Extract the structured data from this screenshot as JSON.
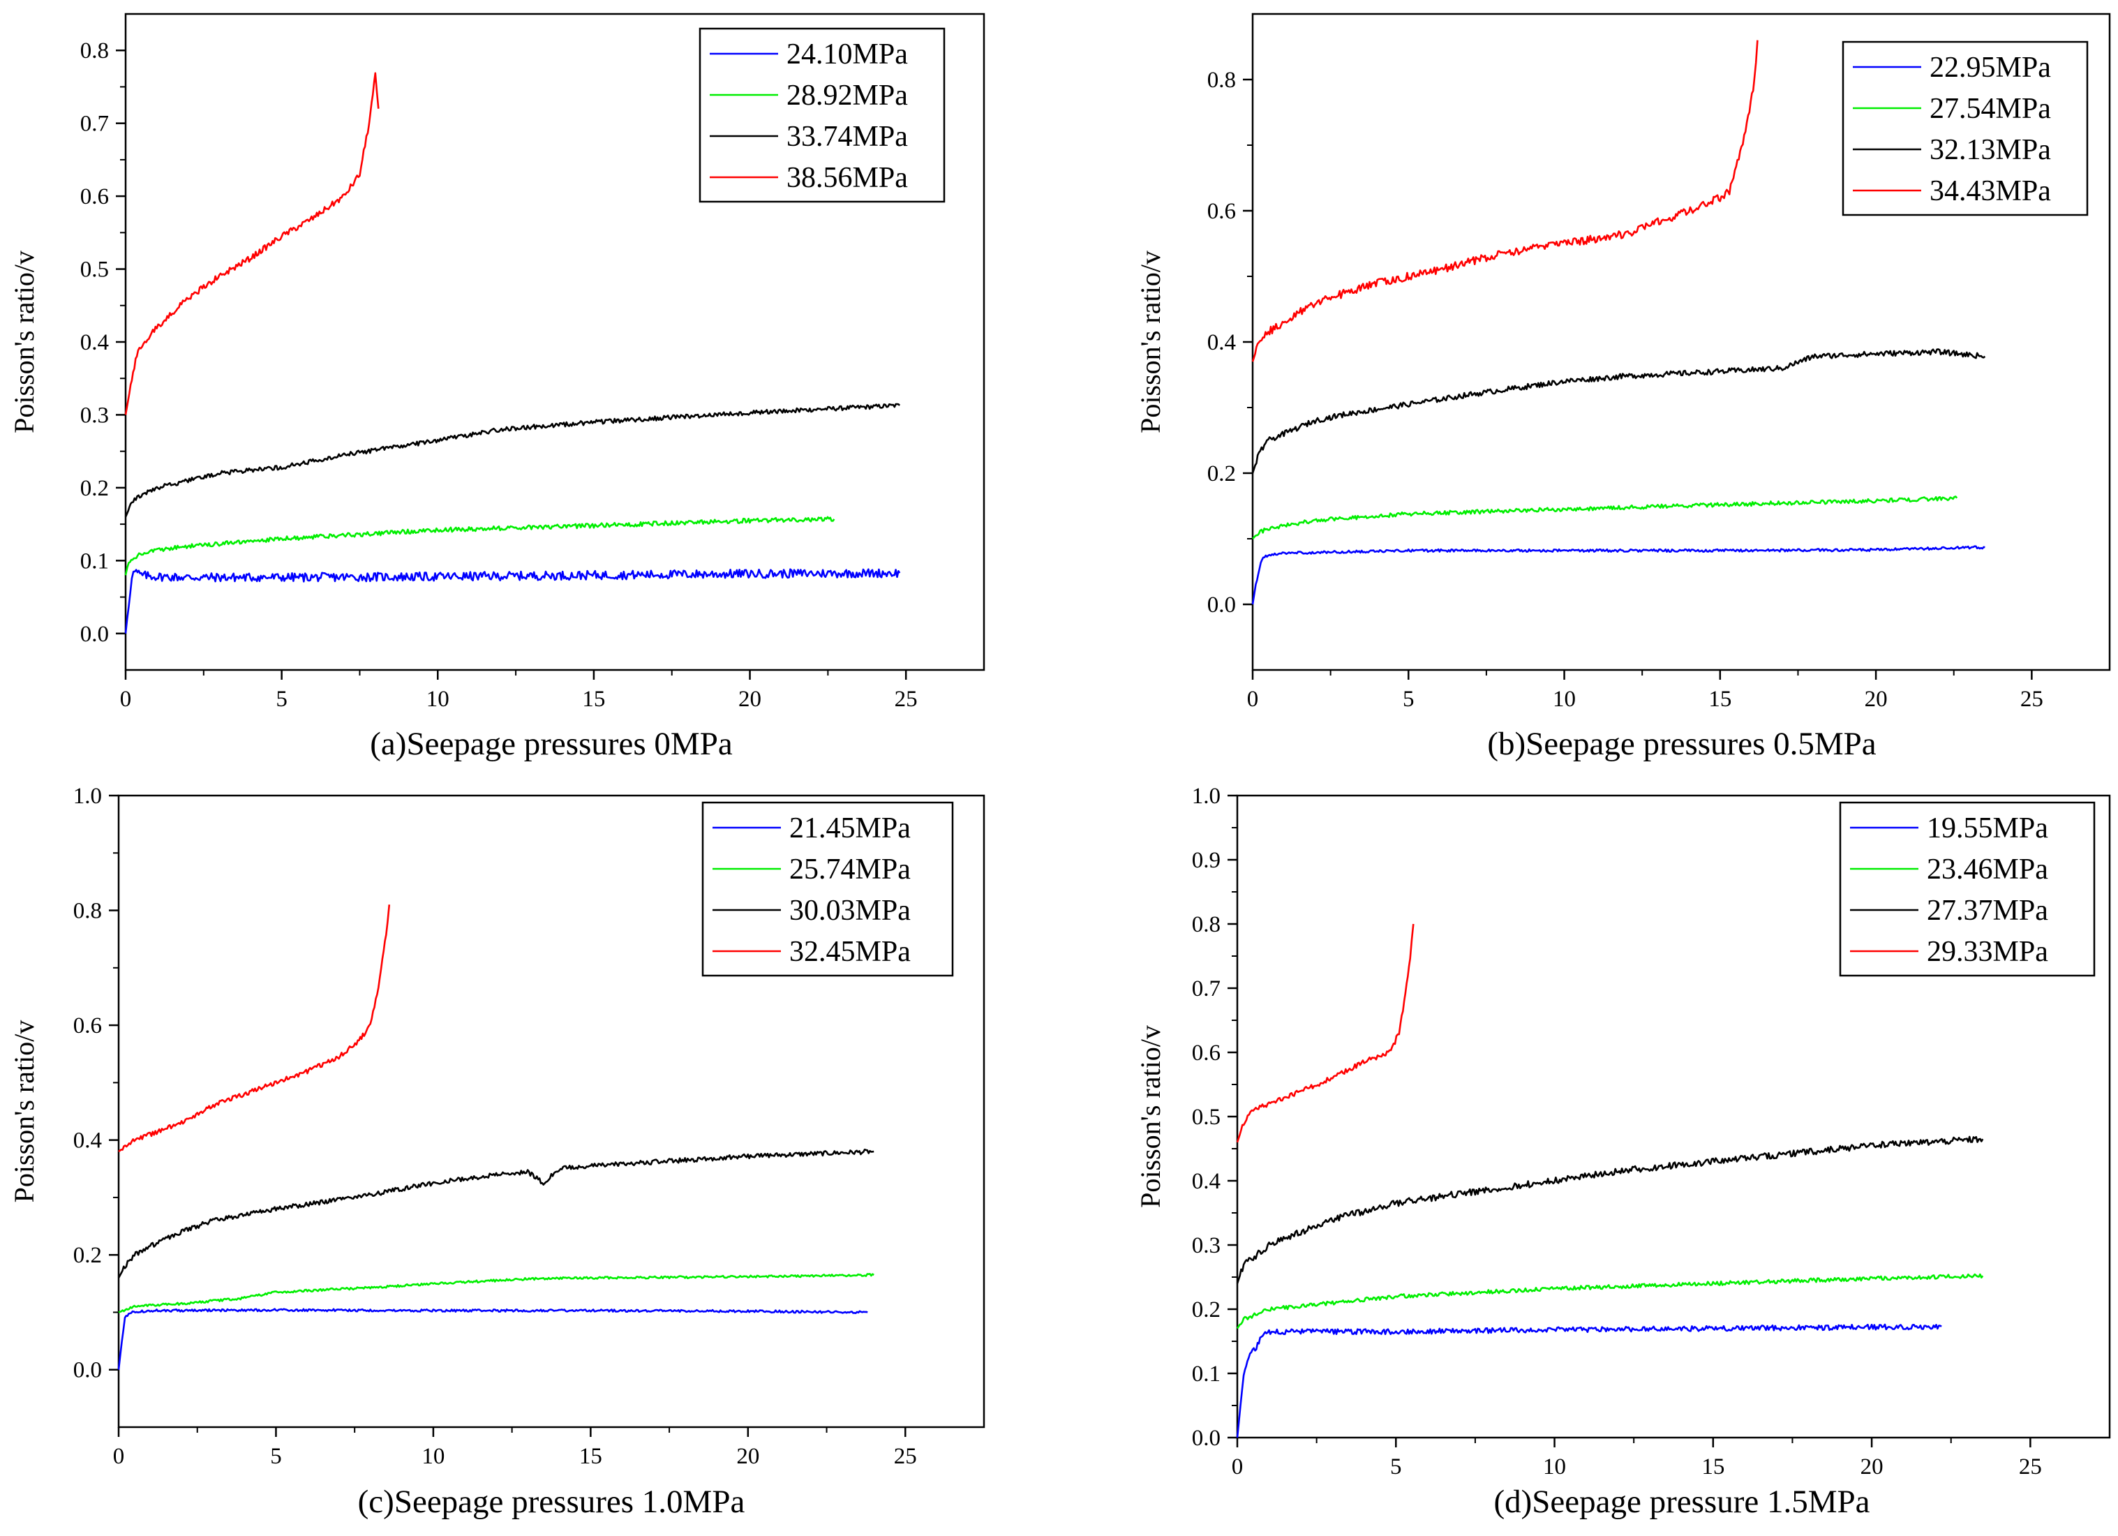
{
  "colors": {
    "blue": "#0000ff",
    "green": "#00ee00",
    "black": "#000000",
    "red": "#ff0000"
  },
  "chart_data": [
    {
      "type": "line",
      "caption": "(a)Seepage pressures 0MPa",
      "ylabel": "Poisson's ratio/v",
      "xlabel": "",
      "xlim": [
        0,
        27.5
      ],
      "ylim": [
        -0.05,
        0.85
      ],
      "xticks": [
        0,
        5,
        10,
        15,
        20,
        25
      ],
      "xtick_labels": [
        "0",
        "5",
        "10",
        "15",
        "20",
        "25"
      ],
      "yticks": [
        0,
        0.1,
        0.2,
        0.3,
        0.4,
        0.5,
        0.6,
        0.7,
        0.8
      ],
      "ytick_labels": [
        "0.0",
        "0.1",
        "0.2",
        "0.3",
        "0.4",
        "0.5",
        "0.6",
        "0.7",
        "0.8"
      ],
      "legend_position": "top-right",
      "series": [
        {
          "name": "24.10MPa",
          "color": "#0000ff",
          "noise": 0.006,
          "x": [
            0,
            0.1,
            0.2,
            0.3,
            0.5,
            1,
            2,
            5,
            10,
            15,
            20,
            24.8
          ],
          "y": [
            0,
            0.04,
            0.08,
            0.085,
            0.08,
            0.078,
            0.077,
            0.077,
            0.078,
            0.08,
            0.082,
            0.083
          ]
        },
        {
          "name": "28.92MPa",
          "color": "#00ee00",
          "noise": 0.003,
          "x": [
            0,
            0.1,
            0.3,
            0.6,
            1,
            2,
            5,
            10,
            15,
            20,
            22.7
          ],
          "y": [
            0.08,
            0.1,
            0.105,
            0.11,
            0.115,
            0.12,
            0.13,
            0.142,
            0.148,
            0.155,
            0.157
          ]
        },
        {
          "name": "33.74MPa",
          "color": "#000000",
          "noise": 0.003,
          "x": [
            0,
            0.2,
            0.5,
            1,
            2,
            3,
            5,
            7,
            10,
            12,
            15,
            20,
            24.8
          ],
          "y": [
            0.16,
            0.18,
            0.19,
            0.2,
            0.21,
            0.22,
            0.228,
            0.245,
            0.265,
            0.28,
            0.29,
            0.303,
            0.313
          ]
        },
        {
          "name": "38.56MPa",
          "color": "#ff0000",
          "noise": 0.004,
          "x": [
            0,
            0.2,
            0.4,
            1,
            2,
            3,
            4,
            5,
            6,
            7,
            7.5,
            7.8,
            8.0,
            8.1
          ],
          "y": [
            0.3,
            0.35,
            0.39,
            0.42,
            0.46,
            0.49,
            0.515,
            0.545,
            0.57,
            0.6,
            0.63,
            0.7,
            0.765,
            0.72
          ]
        }
      ]
    },
    {
      "type": "line",
      "caption": "(b)Seepage pressures 0.5MPa",
      "ylabel": "Poisson's ratio/v",
      "xlabel": "",
      "xlim": [
        0,
        27.5
      ],
      "ylim": [
        -0.1,
        0.9
      ],
      "xticks": [
        0,
        5,
        10,
        15,
        20,
        25
      ],
      "xtick_labels": [
        "0",
        "5",
        "10",
        "15",
        "20",
        "25"
      ],
      "yticks": [
        0,
        0.2,
        0.4,
        0.6,
        0.8
      ],
      "ytick_labels": [
        "0.0",
        "0.2",
        "0.4",
        "0.6",
        "0.8"
      ],
      "legend_position": "top-right",
      "series": [
        {
          "name": "22.95MPa",
          "color": "#0000ff",
          "noise": 0.002,
          "x": [
            0,
            0.1,
            0.3,
            0.5,
            1,
            3,
            5,
            10,
            15,
            20,
            23.5
          ],
          "y": [
            0,
            0.03,
            0.07,
            0.075,
            0.078,
            0.08,
            0.082,
            0.082,
            0.082,
            0.083,
            0.087
          ]
        },
        {
          "name": "27.54MPa",
          "color": "#00ee00",
          "noise": 0.003,
          "x": [
            0,
            0.2,
            0.5,
            1,
            2,
            5,
            10,
            15,
            20,
            22.6
          ],
          "y": [
            0.1,
            0.11,
            0.115,
            0.12,
            0.128,
            0.138,
            0.145,
            0.152,
            0.158,
            0.162
          ]
        },
        {
          "name": "32.13MPa",
          "color": "#000000",
          "noise": 0.004,
          "x": [
            0,
            0.2,
            0.5,
            1,
            2,
            3,
            5,
            7,
            10,
            12,
            15,
            17,
            18,
            20,
            22,
            23.5
          ],
          "y": [
            0.2,
            0.23,
            0.25,
            0.26,
            0.28,
            0.29,
            0.305,
            0.32,
            0.34,
            0.348,
            0.355,
            0.36,
            0.378,
            0.382,
            0.385,
            0.378
          ]
        },
        {
          "name": "34.43MPa",
          "color": "#ff0000",
          "noise": 0.006,
          "x": [
            0,
            0.2,
            0.5,
            1,
            2,
            4,
            6,
            8,
            10,
            12,
            14,
            15,
            15.3,
            15.6,
            15.9,
            16.1,
            16.2
          ],
          "y": [
            0.37,
            0.4,
            0.415,
            0.43,
            0.46,
            0.49,
            0.51,
            0.535,
            0.55,
            0.565,
            0.6,
            0.62,
            0.63,
            0.68,
            0.74,
            0.8,
            0.86
          ]
        }
      ]
    },
    {
      "type": "line",
      "caption": "(c)Seepage pressures 1.0MPa",
      "ylabel": "Poisson's ratio/v",
      "xlabel": "",
      "xlim": [
        0,
        27.5
      ],
      "ylim": [
        -0.1,
        1.0
      ],
      "xticks": [
        0,
        5,
        10,
        15,
        20,
        25
      ],
      "xtick_labels": [
        "0",
        "5",
        "10",
        "15",
        "20",
        "25"
      ],
      "yticks": [
        0,
        0.2,
        0.4,
        0.6,
        0.8,
        1.0
      ],
      "ytick_labels": [
        "0.0",
        "0.2",
        "0.4",
        "0.6",
        "0.8",
        "1.0"
      ],
      "legend_position": "top-right",
      "series": [
        {
          "name": "21.45MPa",
          "color": "#0000ff",
          "noise": 0.002,
          "x": [
            0,
            0.1,
            0.2,
            0.4,
            1,
            5,
            10,
            15,
            20,
            23.8
          ],
          "y": [
            0,
            0.05,
            0.09,
            0.1,
            0.103,
            0.104,
            0.103,
            0.103,
            0.102,
            0.1
          ]
        },
        {
          "name": "25.74MPa",
          "color": "#00ee00",
          "noise": 0.002,
          "x": [
            0,
            0.5,
            1,
            2,
            4,
            5,
            8,
            10,
            13,
            15,
            20,
            24
          ],
          "y": [
            0.1,
            0.11,
            0.112,
            0.115,
            0.125,
            0.135,
            0.143,
            0.15,
            0.158,
            0.16,
            0.162,
            0.165
          ]
        },
        {
          "name": "30.03MPa",
          "color": "#000000",
          "noise": 0.004,
          "x": [
            0,
            0.2,
            0.5,
            1,
            2,
            3,
            5,
            8,
            10,
            12,
            13,
            13.5,
            14,
            15,
            18,
            20,
            24
          ],
          "y": [
            0.16,
            0.18,
            0.2,
            0.215,
            0.24,
            0.26,
            0.28,
            0.305,
            0.325,
            0.34,
            0.345,
            0.325,
            0.35,
            0.355,
            0.365,
            0.372,
            0.38
          ]
        },
        {
          "name": "32.45MPa",
          "color": "#ff0000",
          "noise": 0.004,
          "x": [
            0,
            0.5,
            1,
            2,
            3,
            4,
            5,
            6,
            7,
            7.6,
            8,
            8.3,
            8.5,
            8.6
          ],
          "y": [
            0.38,
            0.4,
            0.41,
            0.43,
            0.46,
            0.48,
            0.5,
            0.52,
            0.545,
            0.57,
            0.6,
            0.68,
            0.76,
            0.81
          ]
        }
      ]
    },
    {
      "type": "line",
      "caption": "(d)Seepage pressure 1.5MPa",
      "ylabel": "Poisson's ratio/v",
      "xlabel": "",
      "xlim": [
        0,
        27.5
      ],
      "ylim": [
        0,
        1.0
      ],
      "xticks": [
        0,
        5,
        10,
        15,
        20,
        25
      ],
      "xtick_labels": [
        "0",
        "5",
        "10",
        "15",
        "20",
        "25"
      ],
      "yticks": [
        0,
        0.1,
        0.2,
        0.3,
        0.4,
        0.5,
        0.6,
        0.7,
        0.8,
        0.9,
        1.0
      ],
      "ytick_labels": [
        "0.0",
        "0.1",
        "0.2",
        "0.3",
        "0.4",
        "0.5",
        "0.6",
        "0.7",
        "0.8",
        "0.9",
        "1.0"
      ],
      "legend_position": "top-right",
      "series": [
        {
          "name": "19.55MPa",
          "color": "#0000ff",
          "noise": 0.004,
          "x": [
            0,
            0.1,
            0.2,
            0.4,
            0.6,
            0.8,
            1,
            2,
            5,
            10,
            15,
            20,
            22.2
          ],
          "y": [
            0,
            0.05,
            0.1,
            0.13,
            0.14,
            0.16,
            0.165,
            0.165,
            0.165,
            0.168,
            0.17,
            0.172,
            0.173
          ]
        },
        {
          "name": "23.46MPa",
          "color": "#00ee00",
          "noise": 0.003,
          "x": [
            0,
            0.2,
            0.5,
            1,
            2,
            3,
            5,
            10,
            15,
            20,
            23.5
          ],
          "y": [
            0.17,
            0.185,
            0.19,
            0.2,
            0.205,
            0.21,
            0.22,
            0.232,
            0.24,
            0.248,
            0.252
          ]
        },
        {
          "name": "27.37MPa",
          "color": "#000000",
          "noise": 0.005,
          "x": [
            0,
            0.2,
            0.5,
            1,
            2,
            3,
            5,
            7,
            10,
            12,
            15,
            18,
            20,
            23.5
          ],
          "y": [
            0.24,
            0.27,
            0.28,
            0.3,
            0.32,
            0.34,
            0.365,
            0.38,
            0.4,
            0.415,
            0.43,
            0.445,
            0.455,
            0.465
          ]
        },
        {
          "name": "29.33MPa",
          "color": "#ff0000",
          "noise": 0.004,
          "x": [
            0,
            0.2,
            0.5,
            1,
            2,
            3,
            4,
            4.8,
            5.1,
            5.3,
            5.45,
            5.55
          ],
          "y": [
            0.46,
            0.49,
            0.51,
            0.52,
            0.54,
            0.56,
            0.585,
            0.6,
            0.63,
            0.69,
            0.75,
            0.8
          ]
        }
      ]
    }
  ]
}
